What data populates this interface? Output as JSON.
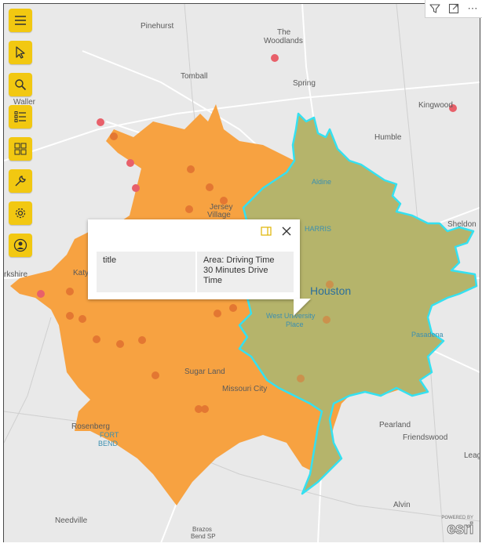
{
  "toolbar": {
    "items": [
      {
        "icon": "hamburger-menu-icon"
      },
      {
        "icon": "pointer-select-icon"
      },
      {
        "icon": "search-icon"
      },
      {
        "icon": "legend-list-icon"
      },
      {
        "icon": "basemap-gallery-icon"
      },
      {
        "icon": "wrench-tools-icon"
      },
      {
        "icon": "gear-settings-icon"
      },
      {
        "icon": "user-account-icon"
      }
    ],
    "accent_color": "#f2c811"
  },
  "visual_header": {
    "filter_icon": "funnel-filter-icon",
    "focus_icon": "focus-mode-icon",
    "more_label": "⋯"
  },
  "map": {
    "colors": {
      "drive_area": "#f7a241",
      "drive_30_area": "#b5b46b",
      "drive_30_outline": "#35e0f0",
      "point": "#e07030",
      "pink_point": "#e8606a"
    },
    "places": {
      "pinehurst": "Pinehurst",
      "the": "The",
      "woodlands": "Woodlands",
      "tomball": "Tomball",
      "spring": "Spring",
      "waller": "Waller",
      "kingwood": "Kingwood",
      "humble": "Humble",
      "aldine": "Aldine",
      "jersey": "Jersey",
      "village": "Village",
      "harris": "HARRIS",
      "sheldon": "Sheldon",
      "brookshire": "rkshire",
      "katy": "Katy",
      "houston": "Houston",
      "west_university": "West University",
      "place": "Place",
      "pasadena": "Pasadena",
      "sugar_land": "Sugar Land",
      "missouri_city": "Missouri City",
      "rosenberg": "Rosenberg",
      "fort": "FORT",
      "bend": "BEND",
      "pearland": "Pearland",
      "friendswood": "Friendswood",
      "league": "Leag",
      "alvin": "Alvin",
      "needville": "Needville",
      "brazos": "Brazos",
      "brazos_bend": "Bend SP"
    }
  },
  "popup": {
    "dock_icon": "dock-popup-icon",
    "close_icon": "close-icon",
    "field_label": "title",
    "field_value_line1": "Area: Driving Time",
    "field_value_line2": "30 Minutes Drive",
    "field_value_line3": "Time"
  },
  "attribution": {
    "powered_by": "POWERED BY",
    "logo": "esri"
  }
}
